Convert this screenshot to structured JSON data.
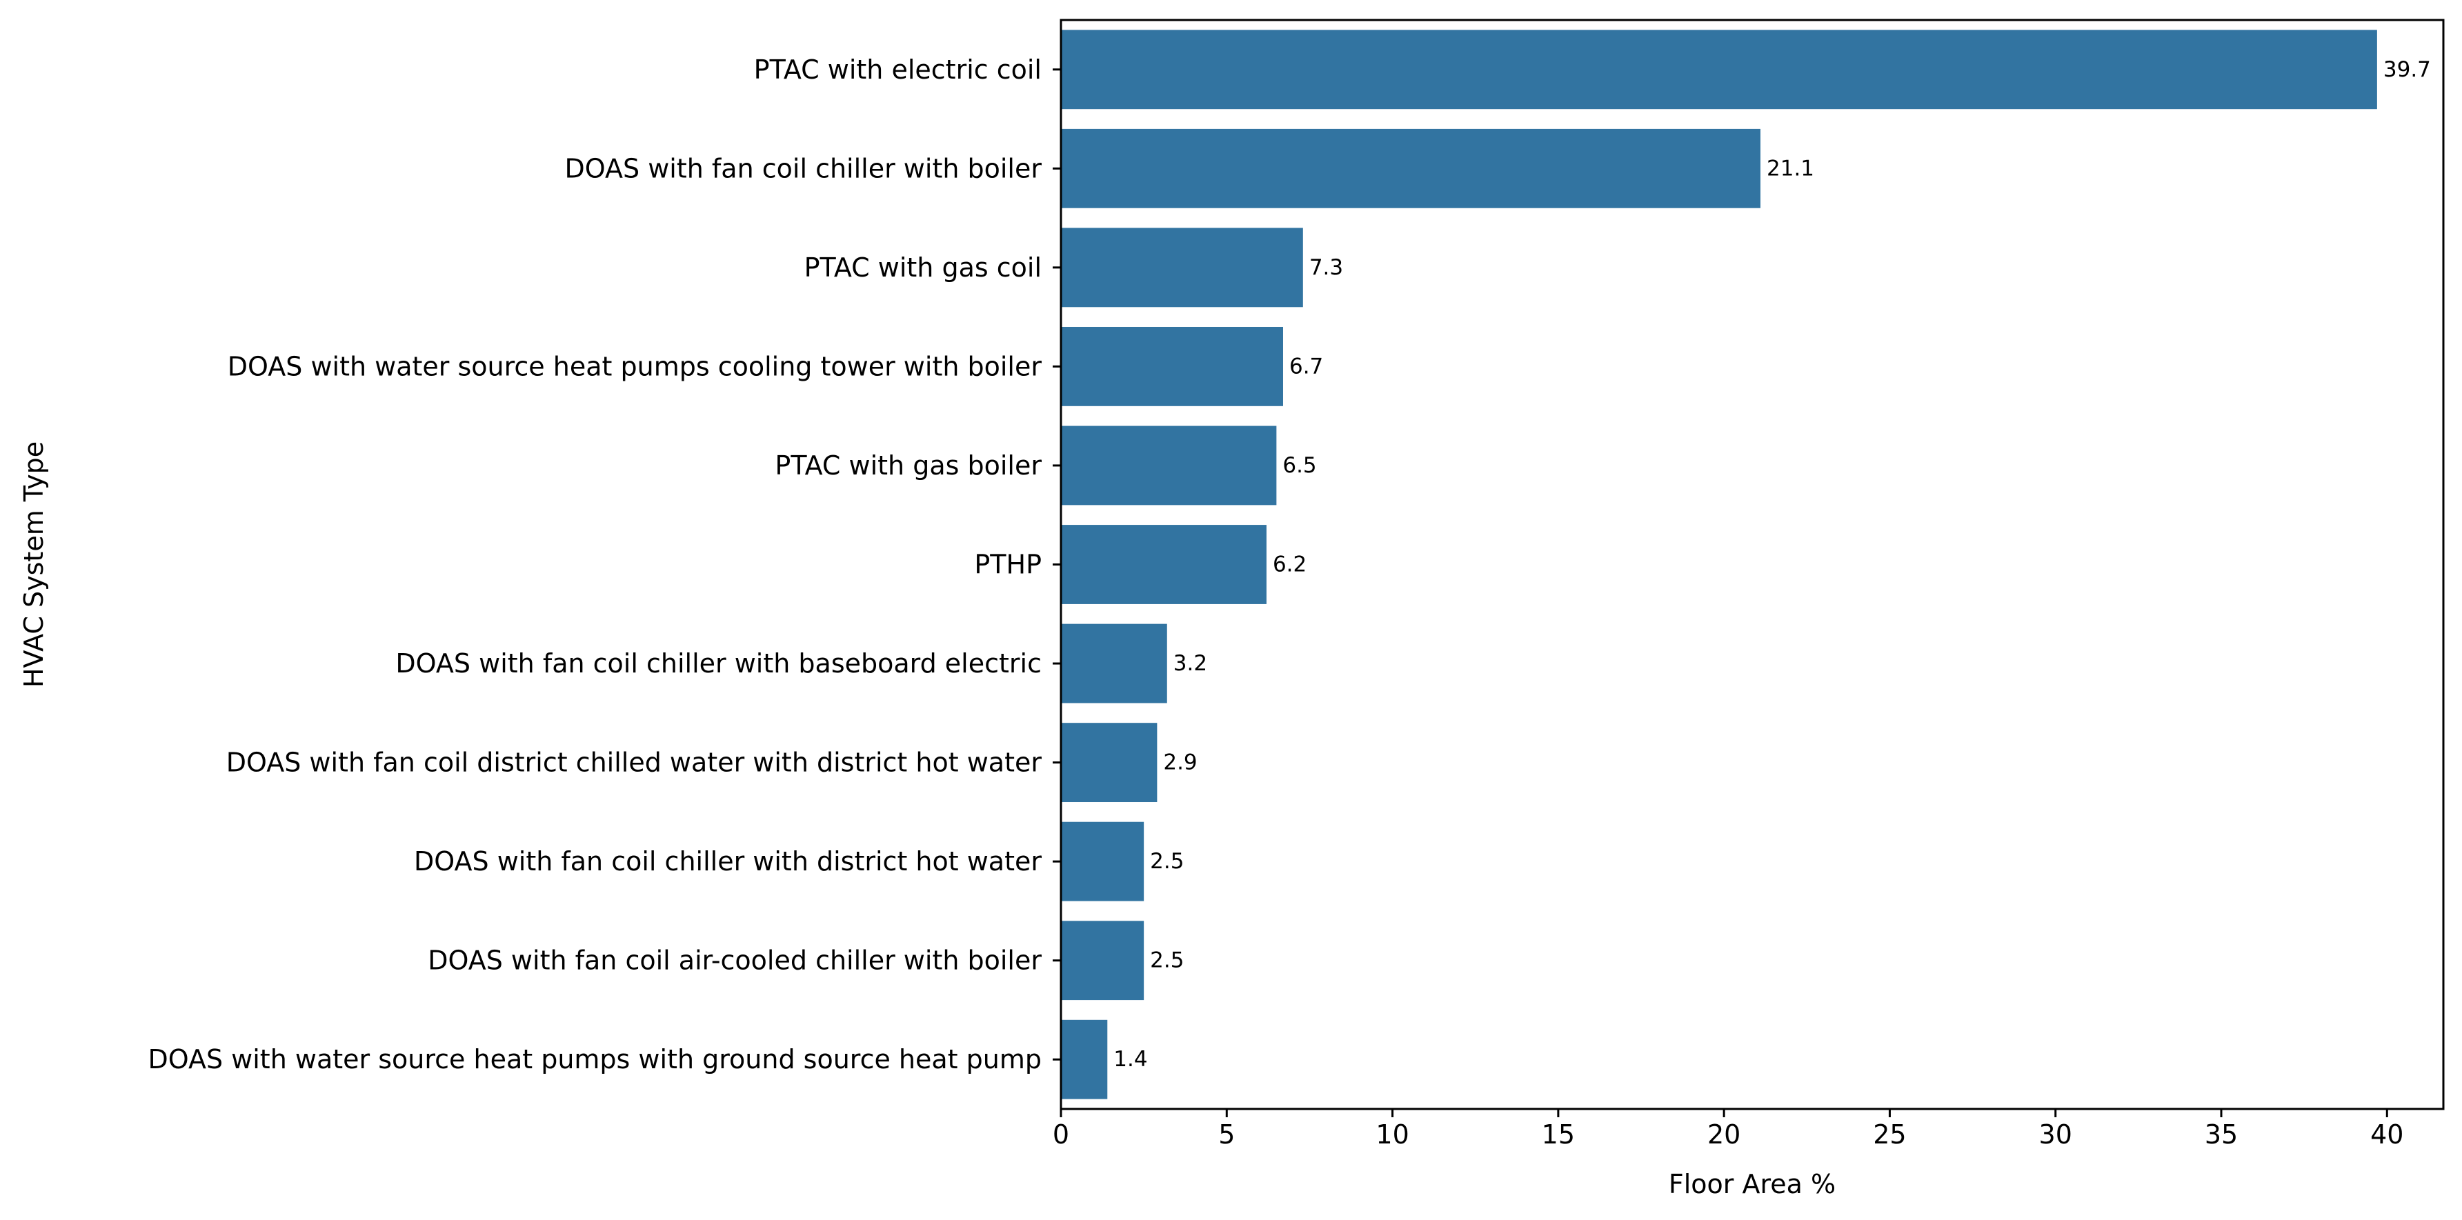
{
  "chart_data": {
    "type": "bar",
    "orientation": "horizontal",
    "title": "",
    "xlabel": "Floor Area %",
    "ylabel": "HVAC System Type",
    "xlim": [
      0,
      41.7
    ],
    "xticks": [
      0,
      5,
      10,
      15,
      20,
      25,
      30,
      35,
      40
    ],
    "grid": false,
    "bar_color": "#3274a1",
    "categories": [
      "PTAC with electric coil",
      "DOAS with fan coil chiller with boiler",
      "PTAC with gas coil",
      "DOAS with water source heat pumps cooling tower with boiler",
      "PTAC with gas boiler",
      "PTHP",
      "DOAS with fan coil chiller with baseboard electric",
      "DOAS with fan coil district chilled water with district hot water",
      "DOAS with fan coil chiller with district hot water",
      "DOAS with fan coil air-cooled chiller with boiler",
      "DOAS with water source heat pumps with ground source heat pump"
    ],
    "values": [
      39.7,
      21.1,
      7.3,
      6.7,
      6.5,
      6.2,
      3.2,
      2.9,
      2.5,
      2.5,
      1.4
    ],
    "value_labels": [
      "39.7",
      "21.1",
      "7.3",
      "6.7",
      "6.5",
      "6.2",
      "3.2",
      "2.9",
      "2.5",
      "2.5",
      "1.4"
    ]
  }
}
